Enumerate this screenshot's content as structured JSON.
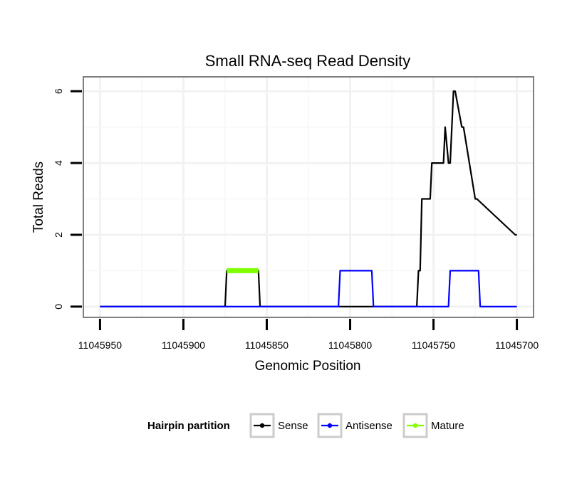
{
  "chart_data": {
    "type": "line",
    "title": "Small RNA-seq Read Density",
    "xlabel": "Genomic Position",
    "ylabel": "Total Reads",
    "x_reversed": true,
    "xlim": [
      11045960,
      11045690
    ],
    "ylim": [
      -0.3,
      6.4
    ],
    "x_ticks": [
      11045950,
      11045900,
      11045850,
      11045800,
      11045750,
      11045700
    ],
    "x_tick_labels": [
      "11045950",
      "11045900",
      "11045850",
      "11045800",
      "11045750",
      "11045700"
    ],
    "y_ticks": [
      0,
      2,
      4,
      6
    ],
    "y_tick_labels": [
      "0",
      "2",
      "4",
      "6"
    ],
    "grid": true,
    "legend": {
      "title": "Hairpin partition",
      "position": "bottom",
      "entries": [
        {
          "label": "Sense",
          "color": "#000000"
        },
        {
          "label": "Antisense",
          "color": "#0000ff"
        },
        {
          "label": "Mature",
          "color": "#7fff00"
        }
      ]
    },
    "series": [
      {
        "name": "Sense",
        "color": "#000000",
        "x": [
          11045950,
          11045875,
          11045874,
          11045855,
          11045854,
          11045760,
          11045759,
          11045758,
          11045757,
          11045752,
          11045751,
          11045744,
          11045743,
          11045741,
          11045740,
          11045738,
          11045737,
          11045733,
          11045732,
          11045725,
          11045724,
          11045701,
          11045700
        ],
        "y": [
          0,
          0,
          1,
          1,
          0,
          0,
          1,
          1,
          3,
          3,
          4,
          4,
          5,
          4,
          4,
          6,
          6,
          5,
          5,
          3,
          3,
          2,
          2
        ]
      },
      {
        "name": "Antisense",
        "color": "#0000ff",
        "x": [
          11045950,
          11045807,
          11045806,
          11045787,
          11045786,
          11045741,
          11045740,
          11045723,
          11045722,
          11045700
        ],
        "y": [
          0,
          0,
          1,
          1,
          0,
          0,
          1,
          1,
          0,
          0
        ]
      },
      {
        "name": "Mature",
        "color": "#7fff00",
        "x": [
          11045874,
          11045855
        ],
        "y": [
          1,
          1
        ]
      }
    ]
  }
}
